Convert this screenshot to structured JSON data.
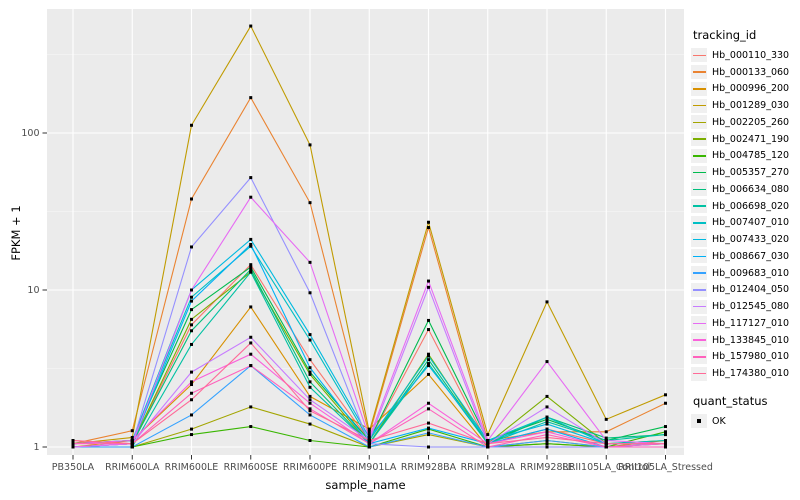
{
  "chart_data": {
    "type": "line",
    "title": "",
    "xlabel": "sample_name",
    "ylabel": "FPKM + 1",
    "y_scale": "log10",
    "y_ticks": [
      1,
      10,
      100
    ],
    "y_minor_ticks": [
      3.162,
      31.62,
      316.2
    ],
    "ylim": [
      1,
      480
    ],
    "grid": true,
    "legend_position": "right",
    "categories": [
      "PB350LA",
      "RRIM600LA",
      "RRIM600LE",
      "RRIM600SE",
      "RRIM600PE",
      "RRIM901LA",
      "RRIM928BA",
      "RRIM928LA",
      "RRIM928LE",
      "RRII105LA_Control",
      "RRII105LA_Stressed"
    ],
    "series": [
      {
        "name": "Hb_000110_330",
        "color": "#F8766D",
        "values": [
          1.1,
          1.05,
          6.0,
          14.5,
          3.6,
          1.1,
          5.6,
          1.05,
          1.3,
          1.05,
          1.05
        ]
      },
      {
        "name": "Hb_000133_060",
        "color": "#EA8331",
        "values": [
          1.05,
          1.27,
          38,
          168,
          36,
          1.2,
          25,
          1.1,
          1.25,
          1.25,
          1.9
        ]
      },
      {
        "name": "Hb_000996_200",
        "color": "#D89000",
        "values": [
          1.0,
          1.1,
          2.5,
          7.8,
          2.1,
          1.3,
          2.9,
          1.0,
          1.1,
          1.0,
          1.1
        ]
      },
      {
        "name": "Hb_001289_030",
        "color": "#C09B00",
        "values": [
          1.05,
          1.15,
          112,
          480,
          84,
          1.25,
          27,
          1.2,
          8.4,
          1.5,
          2.15
        ]
      },
      {
        "name": "Hb_002205_260",
        "color": "#A3A500",
        "values": [
          1.0,
          1.0,
          1.3,
          1.8,
          1.4,
          1.0,
          1.2,
          1.0,
          1.05,
          1.0,
          1.05
        ]
      },
      {
        "name": "Hb_002471_190",
        "color": "#7CAE00",
        "values": [
          1.0,
          1.05,
          6.5,
          13.0,
          2.9,
          1.05,
          3.9,
          1.05,
          2.1,
          1.05,
          1.1
        ]
      },
      {
        "name": "Hb_004785_120",
        "color": "#39B600",
        "values": [
          1.0,
          1.0,
          1.2,
          1.35,
          1.1,
          1.0,
          1.3,
          1.0,
          1.05,
          1.0,
          1.25
        ]
      },
      {
        "name": "Hb_005357_270",
        "color": "#00BB4E",
        "values": [
          1.05,
          1.1,
          7.5,
          14.0,
          3.0,
          1.1,
          6.4,
          1.1,
          1.5,
          1.1,
          1.35
        ]
      },
      {
        "name": "Hb_006634_080",
        "color": "#00BF7D",
        "values": [
          1.0,
          1.05,
          5.5,
          13.5,
          2.6,
          1.05,
          3.6,
          1.05,
          1.55,
          1.14,
          1.2
        ]
      },
      {
        "name": "Hb_006698_020",
        "color": "#00C1A3",
        "values": [
          1.0,
          1.0,
          4.5,
          13.0,
          2.4,
          1.05,
          3.4,
          1.05,
          1.45,
          1.1,
          1.2
        ]
      },
      {
        "name": "Hb_007407_010",
        "color": "#00BFC4",
        "values": [
          1.05,
          1.1,
          9.0,
          19.0,
          4.8,
          1.1,
          3.8,
          1.1,
          1.55,
          1.05,
          1.1
        ]
      },
      {
        "name": "Hb_007433_020",
        "color": "#00BAE0",
        "values": [
          1.05,
          1.1,
          10.0,
          21.0,
          5.2,
          1.15,
          3.3,
          1.1,
          1.4,
          1.05,
          1.05
        ]
      },
      {
        "name": "Hb_008667_030",
        "color": "#00B0F6",
        "values": [
          1.0,
          1.05,
          8.5,
          19.5,
          3.2,
          1.05,
          1.32,
          1.05,
          1.3,
          1.0,
          1.05
        ]
      },
      {
        "name": "Hb_009683_010",
        "color": "#35A2FF",
        "values": [
          1.0,
          1.0,
          1.6,
          3.3,
          1.6,
          1.0,
          1.23,
          1.0,
          1.1,
          1.0,
          1.0
        ]
      },
      {
        "name": "Hb_012404_050",
        "color": "#9590FF",
        "values": [
          1.0,
          1.05,
          18.8,
          52,
          9.6,
          1.05,
          1.0,
          1.0,
          1.0,
          1.0,
          1.0
        ]
      },
      {
        "name": "Hb_012545_080",
        "color": "#C77CFF",
        "values": [
          1.0,
          1.05,
          3.0,
          5.0,
          2.0,
          1.1,
          10.4,
          1.05,
          1.8,
          1.05,
          1.05
        ]
      },
      {
        "name": "Hb_117127_010",
        "color": "#E76BF3",
        "values": [
          1.0,
          1.05,
          10.0,
          39,
          15.0,
          1.15,
          11.4,
          1.1,
          3.5,
          1.1,
          1.05
        ]
      },
      {
        "name": "Hb_133845_010",
        "color": "#FA62DB",
        "values": [
          1.05,
          1.1,
          2.6,
          3.9,
          1.9,
          1.05,
          1.9,
          1.05,
          1.25,
          1.0,
          1.05
        ]
      },
      {
        "name": "Hb_157980_010",
        "color": "#FF62BC",
        "values": [
          1.05,
          1.05,
          2.2,
          3.3,
          1.75,
          1.05,
          1.75,
          1.0,
          1.2,
          1.0,
          1.0
        ]
      },
      {
        "name": "Hb_174380_010",
        "color": "#FF6A98",
        "values": [
          1.1,
          1.05,
          2.0,
          4.6,
          1.7,
          1.1,
          1.42,
          1.05,
          1.15,
          1.05,
          1.05
        ]
      }
    ]
  },
  "axis": {
    "x_title": "sample_name",
    "y_title": "FPKM + 1",
    "y_tick_labels": [
      "1",
      "10",
      "100"
    ]
  },
  "legend": {
    "tracking_title": "tracking_id",
    "quant_title": "quant_status",
    "quant_items": [
      {
        "label": "OK"
      }
    ]
  },
  "colors": {
    "panel_bg": "#EBEBEB",
    "grid_major": "#FFFFFF",
    "grid_minor": "#F5F5F5",
    "tick_text": "#4D4D4D",
    "tick_mark": "#333333",
    "point": "#000000",
    "legend_key_bg": "#F0F0F0"
  }
}
